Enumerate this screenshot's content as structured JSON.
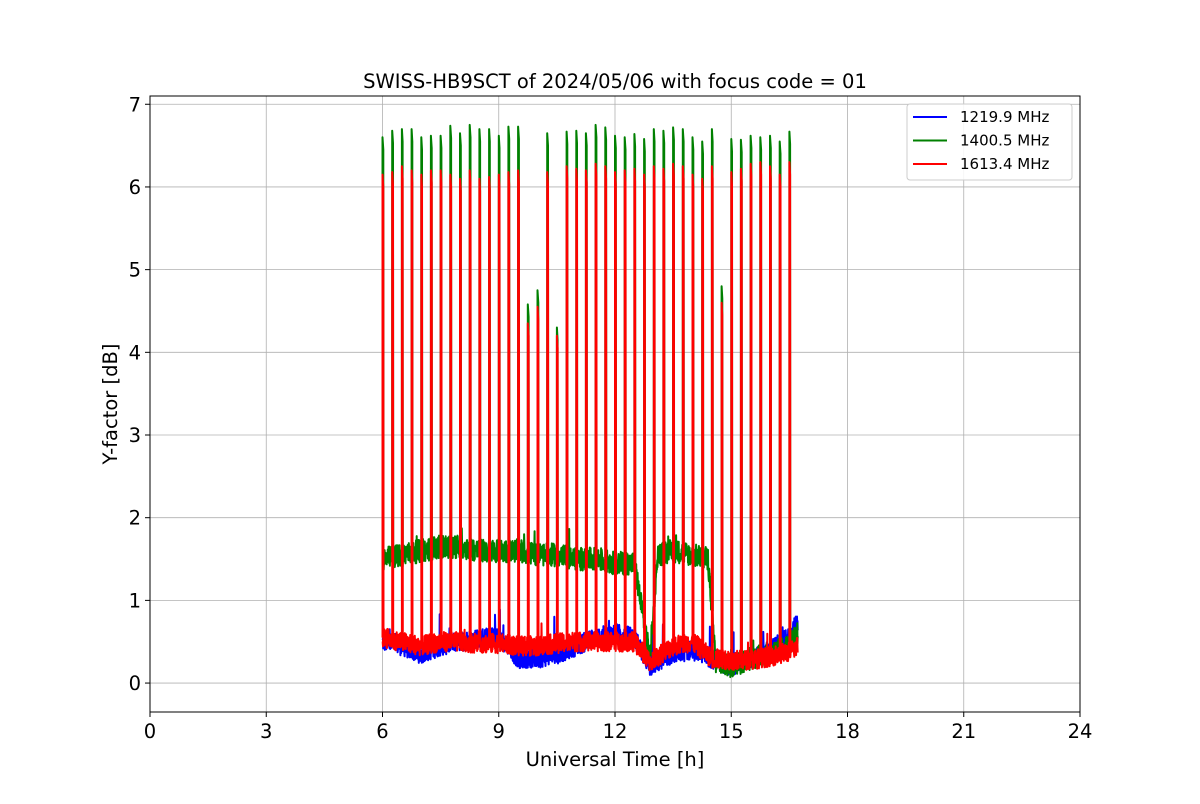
{
  "chart_data": {
    "type": "line",
    "title": "SWISS-HB9SCT of 2024/05/06 with focus code = 01",
    "xlabel": "Universal Time [h]",
    "ylabel": "Y-factor [dB]",
    "xlim": [
      0,
      24
    ],
    "ylim": [
      -0.35,
      7.1
    ],
    "xticks": [
      0,
      3,
      6,
      9,
      12,
      15,
      18,
      21,
      24
    ],
    "yticks": [
      0,
      1,
      2,
      3,
      4,
      5,
      6,
      7
    ],
    "grid": true,
    "legend_position": "top-right",
    "data_start_h": 6.0,
    "data_end_h": 16.72,
    "series": [
      {
        "name": "1219.9 MHz",
        "color": "#0000ff",
        "baseline_segments": [
          {
            "x": 6.0,
            "y": 0.5
          },
          {
            "x": 6.5,
            "y": 0.45
          },
          {
            "x": 7.0,
            "y": 0.35
          },
          {
            "x": 7.5,
            "y": 0.45
          },
          {
            "x": 8.0,
            "y": 0.5
          },
          {
            "x": 8.5,
            "y": 0.55
          },
          {
            "x": 9.0,
            "y": 0.55
          },
          {
            "x": 9.5,
            "y": 0.3
          },
          {
            "x": 10.0,
            "y": 0.3
          },
          {
            "x": 10.5,
            "y": 0.35
          },
          {
            "x": 11.0,
            "y": 0.45
          },
          {
            "x": 11.5,
            "y": 0.55
          },
          {
            "x": 12.0,
            "y": 0.6
          },
          {
            "x": 12.5,
            "y": 0.55
          },
          {
            "x": 12.9,
            "y": 0.2
          },
          {
            "x": 13.5,
            "y": 0.35
          },
          {
            "x": 14.0,
            "y": 0.4
          },
          {
            "x": 14.5,
            "y": 0.3
          },
          {
            "x": 15.0,
            "y": 0.2
          },
          {
            "x": 15.5,
            "y": 0.3
          },
          {
            "x": 16.0,
            "y": 0.4
          },
          {
            "x": 16.5,
            "y": 0.55
          },
          {
            "x": 16.72,
            "y": 0.75
          }
        ]
      },
      {
        "name": "1400.5 MHz",
        "color": "#008000",
        "baseline_segments": [
          {
            "x": 6.0,
            "y": 1.5
          },
          {
            "x": 6.5,
            "y": 1.55
          },
          {
            "x": 7.0,
            "y": 1.6
          },
          {
            "x": 7.5,
            "y": 1.65
          },
          {
            "x": 8.0,
            "y": 1.65
          },
          {
            "x": 8.5,
            "y": 1.6
          },
          {
            "x": 9.0,
            "y": 1.6
          },
          {
            "x": 9.5,
            "y": 1.6
          },
          {
            "x": 10.0,
            "y": 1.55
          },
          {
            "x": 10.5,
            "y": 1.55
          },
          {
            "x": 11.0,
            "y": 1.5
          },
          {
            "x": 11.5,
            "y": 1.5
          },
          {
            "x": 12.0,
            "y": 1.45
          },
          {
            "x": 12.5,
            "y": 1.45
          },
          {
            "x": 12.9,
            "y": 0.3
          },
          {
            "x": 13.1,
            "y": 1.55
          },
          {
            "x": 13.5,
            "y": 1.6
          },
          {
            "x": 14.0,
            "y": 1.55
          },
          {
            "x": 14.4,
            "y": 1.5
          },
          {
            "x": 14.6,
            "y": 0.25
          },
          {
            "x": 15.0,
            "y": 0.2
          },
          {
            "x": 15.5,
            "y": 0.3
          },
          {
            "x": 16.0,
            "y": 0.35
          },
          {
            "x": 16.5,
            "y": 0.45
          },
          {
            "x": 16.72,
            "y": 0.6
          }
        ],
        "peaks": [
          {
            "x": 6.0,
            "y": 6.6
          },
          {
            "x": 6.25,
            "y": 6.68
          },
          {
            "x": 6.5,
            "y": 6.7
          },
          {
            "x": 6.75,
            "y": 6.7
          },
          {
            "x": 7.0,
            "y": 6.6
          },
          {
            "x": 7.25,
            "y": 6.62
          },
          {
            "x": 7.5,
            "y": 6.62
          },
          {
            "x": 7.75,
            "y": 6.74
          },
          {
            "x": 8.0,
            "y": 6.65
          },
          {
            "x": 8.25,
            "y": 6.75
          },
          {
            "x": 8.5,
            "y": 6.7
          },
          {
            "x": 8.75,
            "y": 6.7
          },
          {
            "x": 9.0,
            "y": 6.62
          },
          {
            "x": 9.25,
            "y": 6.73
          },
          {
            "x": 9.5,
            "y": 6.73
          },
          {
            "x": 9.75,
            "y": 4.58
          },
          {
            "x": 10.0,
            "y": 4.75
          },
          {
            "x": 10.25,
            "y": 6.65
          },
          {
            "x": 10.5,
            "y": 4.3
          },
          {
            "x": 10.75,
            "y": 6.67
          },
          {
            "x": 11.0,
            "y": 6.68
          },
          {
            "x": 11.25,
            "y": 6.65
          },
          {
            "x": 11.5,
            "y": 6.75
          },
          {
            "x": 11.75,
            "y": 6.72
          },
          {
            "x": 12.0,
            "y": 6.62
          },
          {
            "x": 12.25,
            "y": 6.6
          },
          {
            "x": 12.5,
            "y": 6.64
          },
          {
            "x": 12.75,
            "y": 6.58
          },
          {
            "x": 13.0,
            "y": 6.7
          },
          {
            "x": 13.25,
            "y": 6.68
          },
          {
            "x": 13.5,
            "y": 6.72
          },
          {
            "x": 13.75,
            "y": 6.7
          },
          {
            "x": 14.0,
            "y": 6.6
          },
          {
            "x": 14.25,
            "y": 6.55
          },
          {
            "x": 14.5,
            "y": 6.7
          },
          {
            "x": 14.75,
            "y": 4.8
          },
          {
            "x": 15.0,
            "y": 6.58
          },
          {
            "x": 15.25,
            "y": 6.57
          },
          {
            "x": 15.5,
            "y": 6.62
          },
          {
            "x": 15.75,
            "y": 6.6
          },
          {
            "x": 16.0,
            "y": 6.62
          },
          {
            "x": 16.25,
            "y": 6.55
          },
          {
            "x": 16.5,
            "y": 6.67
          }
        ]
      },
      {
        "name": "1613.4 MHz",
        "color": "#ff0000",
        "baseline_segments": [
          {
            "x": 6.0,
            "y": 0.55
          },
          {
            "x": 6.5,
            "y": 0.5
          },
          {
            "x": 7.0,
            "y": 0.45
          },
          {
            "x": 7.5,
            "y": 0.5
          },
          {
            "x": 8.0,
            "y": 0.5
          },
          {
            "x": 8.5,
            "y": 0.48
          },
          {
            "x": 9.0,
            "y": 0.48
          },
          {
            "x": 9.5,
            "y": 0.45
          },
          {
            "x": 10.0,
            "y": 0.45
          },
          {
            "x": 10.5,
            "y": 0.48
          },
          {
            "x": 11.0,
            "y": 0.5
          },
          {
            "x": 11.5,
            "y": 0.5
          },
          {
            "x": 12.0,
            "y": 0.5
          },
          {
            "x": 12.5,
            "y": 0.5
          },
          {
            "x": 12.9,
            "y": 0.25
          },
          {
            "x": 13.5,
            "y": 0.45
          },
          {
            "x": 14.0,
            "y": 0.5
          },
          {
            "x": 14.5,
            "y": 0.3
          },
          {
            "x": 15.0,
            "y": 0.28
          },
          {
            "x": 15.5,
            "y": 0.28
          },
          {
            "x": 16.0,
            "y": 0.32
          },
          {
            "x": 16.5,
            "y": 0.38
          },
          {
            "x": 16.72,
            "y": 0.45
          }
        ],
        "peaks": [
          {
            "x": 6.0,
            "y": 6.15
          },
          {
            "x": 6.25,
            "y": 6.18
          },
          {
            "x": 6.5,
            "y": 6.25
          },
          {
            "x": 6.75,
            "y": 6.2
          },
          {
            "x": 7.0,
            "y": 6.15
          },
          {
            "x": 7.25,
            "y": 6.2
          },
          {
            "x": 7.5,
            "y": 6.2
          },
          {
            "x": 7.75,
            "y": 6.15
          },
          {
            "x": 8.0,
            "y": 6.1
          },
          {
            "x": 8.25,
            "y": 6.2
          },
          {
            "x": 8.5,
            "y": 6.1
          },
          {
            "x": 8.75,
            "y": 6.12
          },
          {
            "x": 9.0,
            "y": 6.15
          },
          {
            "x": 9.25,
            "y": 6.18
          },
          {
            "x": 9.5,
            "y": 6.2
          },
          {
            "x": 9.75,
            "y": 4.35
          },
          {
            "x": 10.0,
            "y": 4.55
          },
          {
            "x": 10.25,
            "y": 6.18
          },
          {
            "x": 10.5,
            "y": 4.2
          },
          {
            "x": 10.75,
            "y": 6.25
          },
          {
            "x": 11.0,
            "y": 6.22
          },
          {
            "x": 11.25,
            "y": 6.2
          },
          {
            "x": 11.5,
            "y": 6.28
          },
          {
            "x": 11.75,
            "y": 6.25
          },
          {
            "x": 12.0,
            "y": 6.18
          },
          {
            "x": 12.25,
            "y": 6.2
          },
          {
            "x": 12.5,
            "y": 6.22
          },
          {
            "x": 12.75,
            "y": 6.15
          },
          {
            "x": 13.0,
            "y": 6.25
          },
          {
            "x": 13.25,
            "y": 6.22
          },
          {
            "x": 13.5,
            "y": 6.28
          },
          {
            "x": 13.75,
            "y": 6.25
          },
          {
            "x": 14.0,
            "y": 6.15
          },
          {
            "x": 14.25,
            "y": 6.1
          },
          {
            "x": 14.5,
            "y": 6.25
          },
          {
            "x": 14.75,
            "y": 4.6
          },
          {
            "x": 15.0,
            "y": 6.18
          },
          {
            "x": 15.25,
            "y": 6.22
          },
          {
            "x": 15.5,
            "y": 6.28
          },
          {
            "x": 15.75,
            "y": 6.3
          },
          {
            "x": 16.0,
            "y": 6.25
          },
          {
            "x": 16.25,
            "y": 6.15
          },
          {
            "x": 16.5,
            "y": 6.3
          }
        ]
      }
    ]
  }
}
